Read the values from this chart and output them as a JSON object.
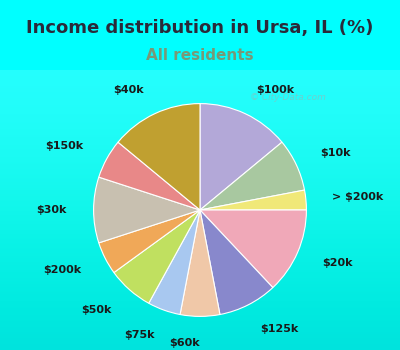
{
  "title": "Income distribution in Ursa, IL (%)",
  "subtitle": "All residents",
  "watermark": "© City-Data.com",
  "title_color": "#2a2a3a",
  "subtitle_color": "#779977",
  "background_cyan": "#00FFFF",
  "background_chart": "#e8f5ee",
  "slices": [
    {
      "label": "$100k",
      "value": 14,
      "color": "#b3a8d8"
    },
    {
      "label": "$10k",
      "value": 8,
      "color": "#a8c8a0"
    },
    {
      "label": "> $200k",
      "value": 3,
      "color": "#f0e878"
    },
    {
      "label": "$20k",
      "value": 13,
      "color": "#f0a8b8"
    },
    {
      "label": "$125k",
      "value": 9,
      "color": "#8888cc"
    },
    {
      "label": "$60k",
      "value": 6,
      "color": "#f0c8a8"
    },
    {
      "label": "$75k",
      "value": 5,
      "color": "#a8c8f0"
    },
    {
      "label": "$50k",
      "value": 7,
      "color": "#c0e060"
    },
    {
      "label": "$200k",
      "value": 5,
      "color": "#f0a858"
    },
    {
      "label": "$30k",
      "value": 10,
      "color": "#c8c0b0"
    },
    {
      "label": "$150k",
      "value": 6,
      "color": "#e88888"
    },
    {
      "label": "$40k",
      "value": 14,
      "color": "#c0a030"
    }
  ],
  "title_fontsize": 13,
  "subtitle_fontsize": 11,
  "label_fontsize": 8
}
